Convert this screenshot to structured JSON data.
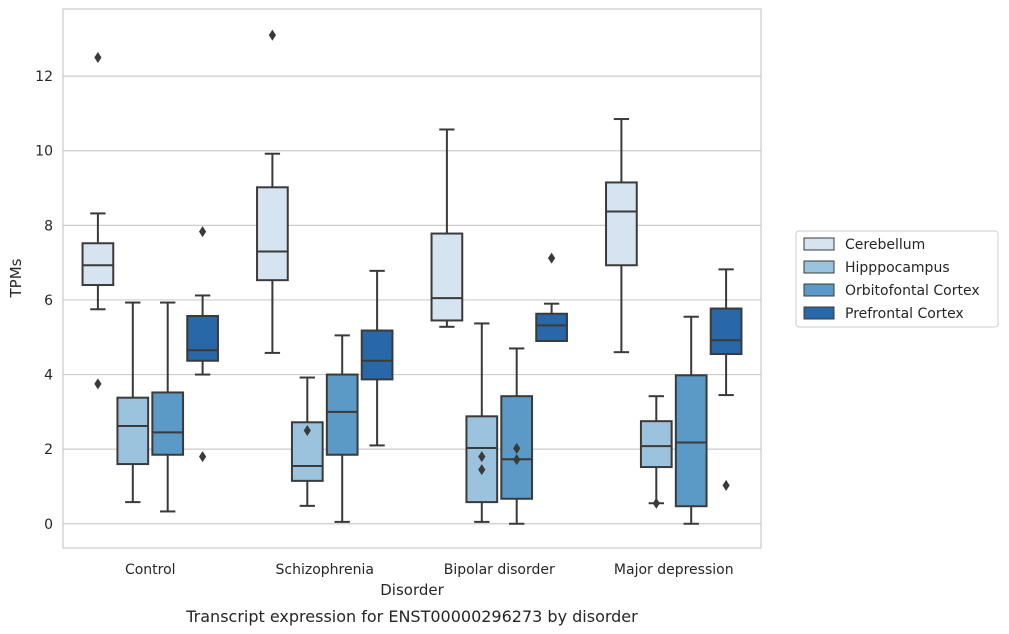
{
  "chart_data": {
    "type": "box",
    "title": "",
    "caption": "Transcript expression for ENST00000296273 by disorder",
    "xlabel": "Disorder",
    "ylabel": "TPMs",
    "ylim": [
      -0.65,
      13.8
    ],
    "yticks": [
      0,
      2,
      4,
      6,
      8,
      10,
      12
    ],
    "grid": "horizontal",
    "legend_position": "right",
    "categories": [
      "Control",
      "Schizophrenia",
      "Bipolar disorder",
      "Major depression"
    ],
    "series": [
      {
        "name": "Cerebellum",
        "color": "#d6e4f2",
        "boxes": [
          {
            "whislo": 5.75,
            "q1": 6.4,
            "med": 6.93,
            "q3": 7.52,
            "whishi": 8.32,
            "fliers": [
              12.5,
              3.75
            ]
          },
          {
            "whislo": 4.58,
            "q1": 6.53,
            "med": 7.3,
            "q3": 9.02,
            "whishi": 9.92,
            "fliers": [
              13.1
            ]
          },
          {
            "whislo": 5.28,
            "q1": 5.45,
            "med": 6.05,
            "q3": 7.78,
            "whishi": 10.57,
            "fliers": []
          },
          {
            "whislo": 4.6,
            "q1": 6.93,
            "med": 8.37,
            "q3": 9.15,
            "whishi": 10.85,
            "fliers": []
          }
        ]
      },
      {
        "name": "Hipppocampus",
        "color": "#9cc3de",
        "boxes": [
          {
            "whislo": 0.58,
            "q1": 1.6,
            "med": 2.62,
            "q3": 3.38,
            "whishi": 5.93,
            "fliers": []
          },
          {
            "whislo": 0.48,
            "q1": 1.15,
            "med": 1.55,
            "q3": 2.72,
            "whishi": 3.92,
            "fliers": [
              2.5
            ]
          },
          {
            "whislo": 0.05,
            "q1": 0.58,
            "med": 2.03,
            "q3": 2.88,
            "whishi": 5.37,
            "fliers": [
              1.8,
              1.45
            ]
          },
          {
            "whislo": 0.55,
            "q1": 1.52,
            "med": 2.08,
            "q3": 2.75,
            "whishi": 3.42,
            "fliers": [
              0.55
            ]
          }
        ]
      },
      {
        "name": "Orbitofontal Cortex",
        "color": "#5b9ac6",
        "boxes": [
          {
            "whislo": 0.33,
            "q1": 1.85,
            "med": 2.45,
            "q3": 3.52,
            "whishi": 5.93,
            "fliers": []
          },
          {
            "whislo": 0.05,
            "q1": 1.85,
            "med": 3.0,
            "q3": 4.0,
            "whishi": 5.05,
            "fliers": []
          },
          {
            "whislo": 0.0,
            "q1": 0.67,
            "med": 1.73,
            "q3": 3.42,
            "whishi": 4.7,
            "fliers": [
              2.02,
              1.72
            ]
          },
          {
            "whislo": 0.0,
            "q1": 0.47,
            "med": 2.18,
            "q3": 3.98,
            "whishi": 5.55,
            "fliers": []
          }
        ]
      },
      {
        "name": "Prefrontal Cortex",
        "color": "#2868a8",
        "boxes": [
          {
            "whislo": 4.0,
            "q1": 4.37,
            "med": 4.65,
            "q3": 5.57,
            "whishi": 6.12,
            "fliers": [
              7.83,
              1.8
            ]
          },
          {
            "whislo": 2.1,
            "q1": 3.87,
            "med": 4.37,
            "q3": 5.18,
            "whishi": 6.78,
            "fliers": []
          },
          {
            "whislo": 4.9,
            "q1": 4.9,
            "med": 5.32,
            "q3": 5.63,
            "whishi": 5.9,
            "fliers": [
              7.12
            ]
          },
          {
            "whislo": 3.45,
            "q1": 4.55,
            "med": 4.92,
            "q3": 5.77,
            "whishi": 6.82,
            "fliers": [
              1.03
            ]
          }
        ]
      }
    ]
  }
}
